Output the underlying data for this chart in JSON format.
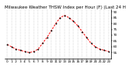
{
  "title": "Milwaukee Weather THSW Index per Hour (F) (Last 24 Hours)",
  "hours": [
    0,
    1,
    2,
    3,
    4,
    5,
    6,
    7,
    8,
    9,
    10,
    11,
    12,
    13,
    14,
    15,
    16,
    17,
    18,
    19,
    20,
    21,
    22,
    23
  ],
  "values": [
    62,
    60,
    58,
    57,
    56,
    55,
    56,
    58,
    63,
    68,
    74,
    80,
    85,
    87,
    85,
    82,
    78,
    73,
    68,
    63,
    60,
    58,
    57,
    56
  ],
  "line_color": "#ff0000",
  "marker_color": "#000000",
  "background_color": "#ffffff",
  "grid_color": "#999999",
  "ylim_min": 50,
  "ylim_max": 92,
  "yticks": [
    55,
    60,
    65,
    70,
    75,
    80,
    85,
    90
  ],
  "ytick_labels": [
    "55",
    "60",
    "65",
    "70",
    "75",
    "80",
    "85",
    "90"
  ],
  "title_fontsize": 4.0,
  "tick_fontsize": 3.0,
  "line_width": 0.7,
  "marker_size": 1.0
}
